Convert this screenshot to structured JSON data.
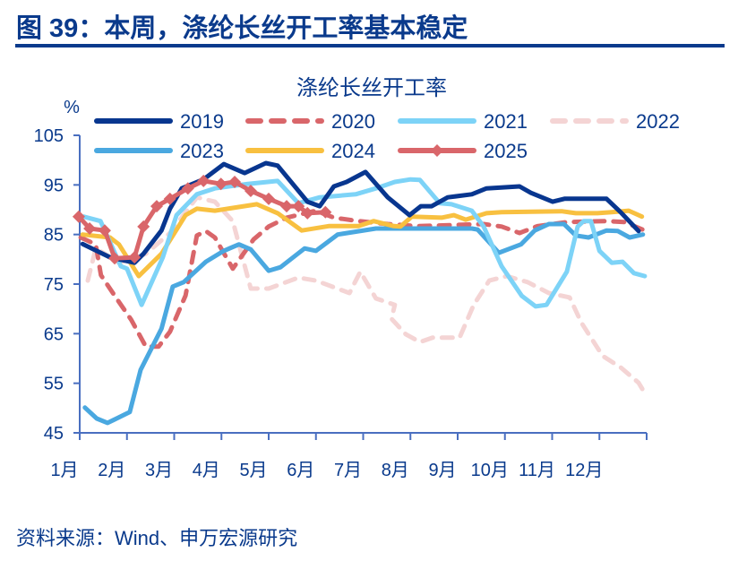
{
  "figure_title": "图 39：本周，涤纶长丝开工率基本稳定",
  "source": "资料来源：Wind、申万宏源研究",
  "chart_data": {
    "type": "line",
    "title": "涤纶长丝开工率",
    "ylabel": "%",
    "xlabel": "",
    "ylim": [
      45,
      105
    ],
    "yticks": [
      45,
      55,
      65,
      75,
      85,
      95,
      105
    ],
    "xlim": [
      1,
      13
    ],
    "xticks": [
      "1月",
      "2月",
      "3月",
      "4月",
      "5月",
      "6月",
      "7月",
      "8月",
      "9月",
      "10月",
      "11月",
      "12月"
    ],
    "x_unit": "month of year (1 = start of January)",
    "grid": false,
    "legend": "top",
    "series": [
      {
        "name": "2019",
        "color": "#08368f",
        "style": "solid",
        "points": [
          [
            1.06,
            83.1
          ],
          [
            1.64,
            80.4
          ],
          [
            2.16,
            79.3
          ],
          [
            2.35,
            81.1
          ],
          [
            2.73,
            85.8
          ],
          [
            2.91,
            90.2
          ],
          [
            3.16,
            94.3
          ],
          [
            3.62,
            96.1
          ],
          [
            4.05,
            99.2
          ],
          [
            4.49,
            97.4
          ],
          [
            4.94,
            99.4
          ],
          [
            5.19,
            98.9
          ],
          [
            5.82,
            91.6
          ],
          [
            6.08,
            90.7
          ],
          [
            6.38,
            94.7
          ],
          [
            6.65,
            95.6
          ],
          [
            7.05,
            97.6
          ],
          [
            7.52,
            92.5
          ],
          [
            7.98,
            88.9
          ],
          [
            8.22,
            90.7
          ],
          [
            8.45,
            90.7
          ],
          [
            8.79,
            92.5
          ],
          [
            9.3,
            93.1
          ],
          [
            9.61,
            94.3
          ],
          [
            10.31,
            94.7
          ],
          [
            10.55,
            93.4
          ],
          [
            11.01,
            91.6
          ],
          [
            11.26,
            92.2
          ],
          [
            12.15,
            92.2
          ],
          [
            12.45,
            89.5
          ],
          [
            12.83,
            85.7
          ]
        ]
      },
      {
        "name": "2020",
        "color": "#d9666a",
        "style": "dashed",
        "points": [
          [
            1.02,
            84.4
          ],
          [
            1.34,
            83
          ],
          [
            1.45,
            76.8
          ],
          [
            1.78,
            72.1
          ],
          [
            2.09,
            67.8
          ],
          [
            2.4,
            62.4
          ],
          [
            2.67,
            62.4
          ],
          [
            2.91,
            65.4
          ],
          [
            3.24,
            72.7
          ],
          [
            3.48,
            84.8
          ],
          [
            3.67,
            85.7
          ],
          [
            3.86,
            84.4
          ],
          [
            4.24,
            78.1
          ],
          [
            4.68,
            84
          ],
          [
            5.0,
            86.6
          ],
          [
            5.38,
            88.4
          ],
          [
            6.0,
            89.8
          ],
          [
            6.38,
            88.4
          ],
          [
            6.9,
            87.7
          ],
          [
            7.52,
            87.1
          ],
          [
            8.16,
            86.7
          ],
          [
            9.55,
            87.1
          ],
          [
            9.93,
            86.6
          ],
          [
            10.31,
            85.3
          ],
          [
            10.69,
            86.7
          ],
          [
            11.31,
            87.5
          ],
          [
            12.15,
            87.7
          ],
          [
            12.53,
            87.5
          ],
          [
            12.96,
            85.8
          ]
        ]
      },
      {
        "name": "2021",
        "color": "#7dd3f7",
        "style": "solid",
        "points": [
          [
            1.08,
            88.6
          ],
          [
            1.44,
            87.7
          ],
          [
            1.87,
            78.6
          ],
          [
            2.0,
            78.1
          ],
          [
            2.31,
            70.8
          ],
          [
            2.76,
            80.4
          ],
          [
            3.05,
            88.9
          ],
          [
            3.48,
            93.1
          ],
          [
            3.86,
            94.3
          ],
          [
            4.56,
            95.2
          ],
          [
            5.19,
            95.8
          ],
          [
            5.63,
            91.3
          ],
          [
            6.08,
            92.5
          ],
          [
            6.84,
            93.1
          ],
          [
            7.27,
            94.3
          ],
          [
            7.67,
            95.6
          ],
          [
            8.0,
            96.1
          ],
          [
            8.2,
            96.0
          ],
          [
            8.62,
            91.3
          ],
          [
            8.87,
            91.1
          ],
          [
            9.3,
            89.8
          ],
          [
            9.55,
            86.6
          ],
          [
            9.93,
            78.6
          ],
          [
            10.36,
            72.6
          ],
          [
            10.65,
            70.5
          ],
          [
            10.88,
            70.8
          ],
          [
            11.31,
            77.5
          ],
          [
            11.54,
            86.6
          ],
          [
            11.67,
            87.7
          ],
          [
            11.82,
            87.7
          ],
          [
            12.0,
            81.7
          ],
          [
            12.26,
            79.3
          ],
          [
            12.49,
            79.5
          ],
          [
            12.73,
            77.2
          ],
          [
            12.96,
            76.6
          ]
        ]
      },
      {
        "name": "2022",
        "color": "#f4d4d4",
        "style": "dashed",
        "points": [
          [
            1.17,
            75.7
          ],
          [
            1.34,
            82.2
          ],
          [
            1.53,
            81.1
          ],
          [
            1.83,
            79.3
          ],
          [
            2.4,
            81.1
          ],
          [
            2.91,
            85.3
          ],
          [
            3.48,
            92.5
          ],
          [
            3.86,
            91.6
          ],
          [
            4.24,
            87.7
          ],
          [
            4.62,
            74.1
          ],
          [
            5.0,
            74.1
          ],
          [
            5.63,
            76.3
          ],
          [
            6.0,
            75.7
          ],
          [
            6.71,
            73.2
          ],
          [
            6.94,
            77.5
          ],
          [
            7.27,
            72.1
          ],
          [
            7.27,
            72.1
          ],
          [
            7.67,
            70.8
          ],
          [
            7.6,
            68
          ],
          [
            7.9,
            64.9
          ],
          [
            8.2,
            63.3
          ],
          [
            8.47,
            64.2
          ],
          [
            9.04,
            64.2
          ],
          [
            9.34,
            70.8
          ],
          [
            9.67,
            75.7
          ],
          [
            10.04,
            76.6
          ],
          [
            10.48,
            75.4
          ],
          [
            10.93,
            73.2
          ],
          [
            11.37,
            72.3
          ],
          [
            11.62,
            67.2
          ],
          [
            12.07,
            60.5
          ],
          [
            12.45,
            58.2
          ],
          [
            12.83,
            55.1
          ],
          [
            13.0,
            52.4
          ]
        ]
      },
      {
        "name": "2023",
        "color": "#4aa8e0",
        "style": "solid",
        "points": [
          [
            1.11,
            50.1
          ],
          [
            1.36,
            47.9
          ],
          [
            1.59,
            47
          ],
          [
            2.06,
            49.2
          ],
          [
            2.29,
            57.7
          ],
          [
            2.73,
            66
          ],
          [
            2.97,
            74.5
          ],
          [
            3.2,
            75.4
          ],
          [
            3.67,
            79.5
          ],
          [
            4.05,
            81.7
          ],
          [
            4.37,
            83
          ],
          [
            4.62,
            82
          ],
          [
            5.0,
            77.7
          ],
          [
            5.25,
            78.4
          ],
          [
            5.76,
            82.2
          ],
          [
            6.0,
            81.7
          ],
          [
            6.46,
            85
          ],
          [
            7.27,
            86.2
          ],
          [
            8.0,
            86.2
          ],
          [
            9.3,
            86.2
          ],
          [
            9.42,
            86.0
          ],
          [
            9.87,
            81.3
          ],
          [
            10.34,
            83
          ],
          [
            10.63,
            85.8
          ],
          [
            10.93,
            87.1
          ],
          [
            11.25,
            87.1
          ],
          [
            11.5,
            84.8
          ],
          [
            11.77,
            84.4
          ],
          [
            12.15,
            85.8
          ],
          [
            12.39,
            85.7
          ],
          [
            12.64,
            84.4
          ],
          [
            12.92,
            85
          ]
        ]
      },
      {
        "name": "2024",
        "color": "#f8c040",
        "style": "solid",
        "points": [
          [
            1.06,
            85
          ],
          [
            1.64,
            84.4
          ],
          [
            1.83,
            83
          ],
          [
            2.25,
            76.6
          ],
          [
            2.73,
            81.1
          ],
          [
            3.24,
            88.9
          ],
          [
            3.48,
            90.2
          ],
          [
            3.86,
            89.8
          ],
          [
            4.75,
            91.1
          ],
          [
            5.19,
            89.3
          ],
          [
            5.7,
            85.8
          ],
          [
            6.27,
            86.7
          ],
          [
            6.9,
            86.7
          ],
          [
            7.22,
            87.7
          ],
          [
            7.65,
            86.7
          ],
          [
            7.79,
            86.6
          ],
          [
            8.03,
            88.6
          ],
          [
            8.66,
            88.4
          ],
          [
            8.92,
            88.9
          ],
          [
            9.17,
            88
          ],
          [
            9.61,
            89.3
          ],
          [
            9.93,
            89.5
          ],
          [
            11.2,
            89.7
          ],
          [
            11.5,
            89.3
          ],
          [
            11.96,
            89.3
          ],
          [
            12.26,
            89.5
          ],
          [
            12.62,
            89.8
          ],
          [
            12.9,
            88.6
          ]
        ]
      },
      {
        "name": "2025",
        "color": "#d9666a",
        "style": "marker",
        "points": [
          [
            0.98,
            88.6
          ],
          [
            1.21,
            86.2
          ],
          [
            1.53,
            85.8
          ],
          [
            1.74,
            80.2
          ],
          [
            2.16,
            80.4
          ],
          [
            2.35,
            86.6
          ],
          [
            2.63,
            90.7
          ],
          [
            2.91,
            92.2
          ],
          [
            3.29,
            94.3
          ],
          [
            3.62,
            95.8
          ],
          [
            3.99,
            95.2
          ],
          [
            4.28,
            95.6
          ],
          [
            4.62,
            93.8
          ],
          [
            5.0,
            92.2
          ],
          [
            5.38,
            90.7
          ],
          [
            5.63,
            90.7
          ],
          [
            5.82,
            89.3
          ],
          [
            6.2,
            89.5
          ]
        ]
      }
    ]
  }
}
